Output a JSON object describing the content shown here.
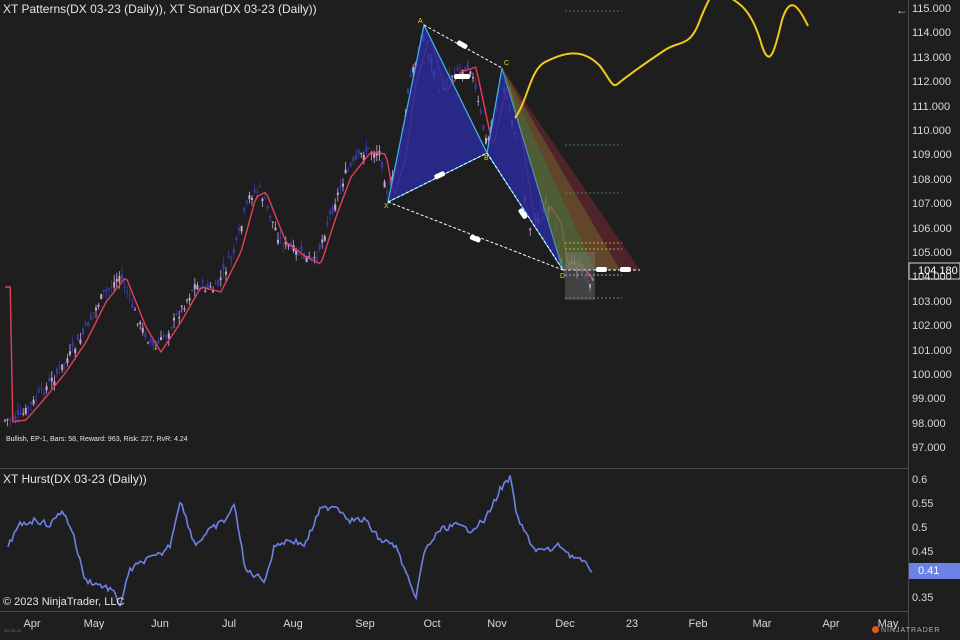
{
  "panels": {
    "price": {
      "title": "XT Patterns(DX 03-23 (Daily)), XT Sonar(DX 03-23 (Daily))",
      "axis_labels": [
        "115.000",
        "114.000",
        "113.000",
        "112.000",
        "111.000",
        "110.000",
        "109.000",
        "108.000",
        "107.000",
        "106.000",
        "105.000",
        "104.000",
        "103.000",
        "102.000",
        "101.000",
        "100.000",
        "99.000",
        "98.000",
        "97.000"
      ],
      "last_price": "104.180",
      "pattern_points": [
        "X",
        "A",
        "B",
        "C",
        "D"
      ],
      "stats": "Bullish, EP-1, Bars: 58, Reward: 963, Risk: 227, RvR: 4.24"
    },
    "hurst": {
      "title": "XT Hurst(DX 03-23 (Daily))",
      "axis_labels": [
        "0.6",
        "0.55",
        "0.5",
        "0.45",
        "0.35"
      ],
      "last_value": "0.41"
    }
  },
  "time_axis": [
    "Apr",
    "May",
    "Jun",
    "Jul",
    "Aug",
    "Sep",
    "Oct",
    "Nov",
    "Dec",
    "23",
    "Feb",
    "Mar",
    "Apr",
    "May"
  ],
  "copyright": "© 2023 NinjaTrader, LLC",
  "brand": "NINJATRADER",
  "tiny_label": "DX 03-23",
  "colors": {
    "background": "#1e1e1e",
    "up_candle": "#c9a6d8",
    "down_candle": "#3a3aa8",
    "ma_line": "#e0405a",
    "pattern_fill": "#2a2a9a",
    "pattern_edge": "#3fb7e8",
    "sonar_line": "#f2c81e",
    "hurst_line": "#6b82e6"
  },
  "icons": {
    "collapse": "arrow-left-icon"
  }
}
